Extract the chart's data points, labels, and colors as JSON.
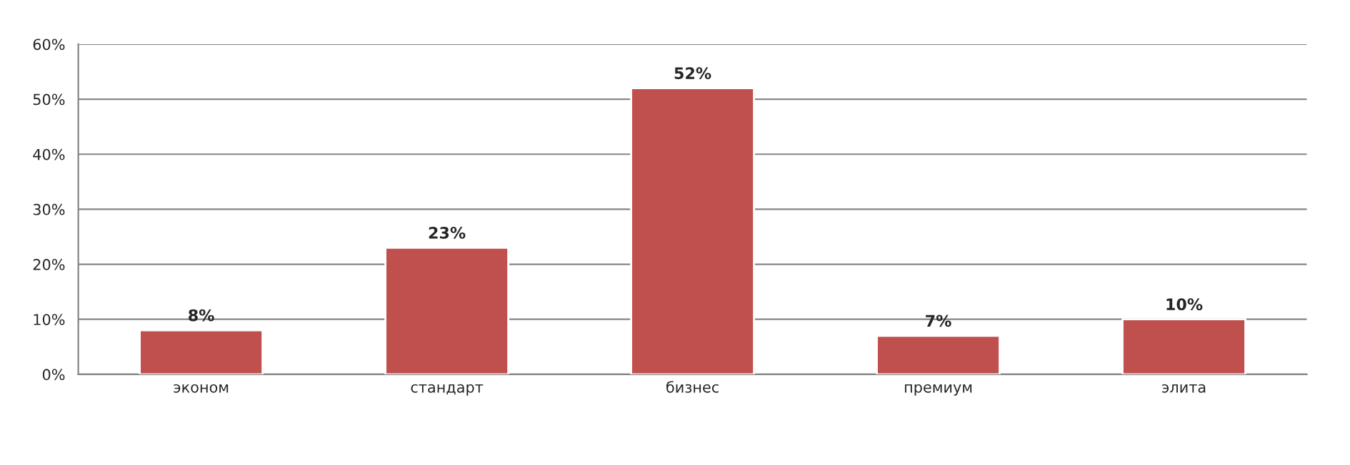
{
  "chart_data": {
    "type": "bar",
    "categories": [
      "эконом",
      "стандарт",
      "бизнес",
      "премиум",
      "элита"
    ],
    "values": [
      8,
      23,
      52,
      7,
      10
    ],
    "value_labels": [
      "8%",
      "23%",
      "52%",
      "7%",
      "10%"
    ],
    "color": "#c0504d",
    "ylim": [
      0,
      60
    ],
    "yticks": [
      {
        "value": 0,
        "label": "0%"
      },
      {
        "value": 10,
        "label": "10%"
      },
      {
        "value": 20,
        "label": "20%"
      },
      {
        "value": 30,
        "label": "30%"
      },
      {
        "value": 40,
        "label": "40%"
      },
      {
        "value": 50,
        "label": "50%"
      },
      {
        "value": 60,
        "label": "60%"
      }
    ],
    "grid": "y",
    "legend": false
  }
}
